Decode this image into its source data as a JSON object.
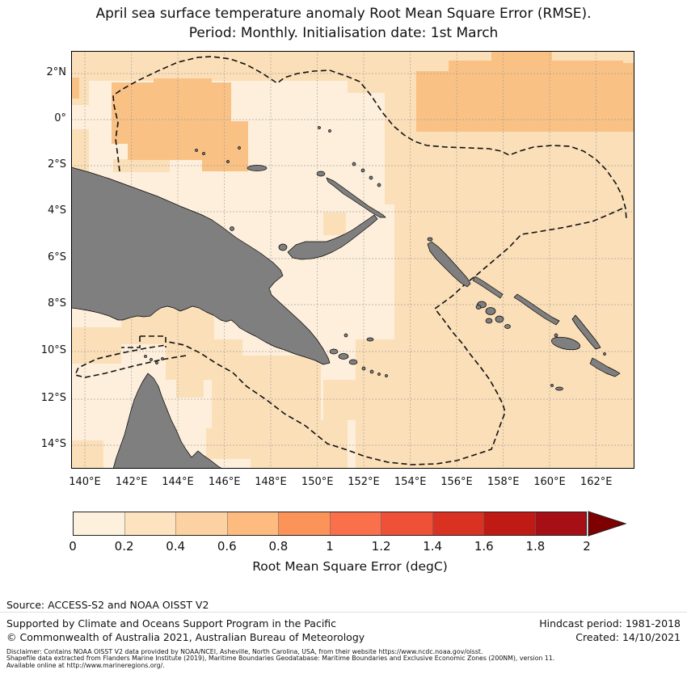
{
  "title": {
    "line1": "April sea surface temperature anomaly Root Mean Square Error (RMSE).",
    "line2": "Period: Monthly. Initialisation date: 1st March"
  },
  "map": {
    "lat_ticks": [
      "2°N",
      "0°",
      "2°S",
      "4°S",
      "6°S",
      "8°S",
      "10°S",
      "12°S",
      "14°S"
    ],
    "lon_ticks": [
      "140°E",
      "142°E",
      "144°E",
      "146°E",
      "148°E",
      "150°E",
      "152°E",
      "154°E",
      "156°E",
      "158°E",
      "160°E",
      "162°E"
    ],
    "colors": {
      "sea_low": "#fdefdb",
      "sea_mid": "#fbdfb8",
      "sea_high": "#fac185",
      "land": "#7f7f7f",
      "coastline": "#000000",
      "grid": "#999999",
      "eez_line": "#111111"
    }
  },
  "colorbar": {
    "ticks": [
      "0",
      "0.2",
      "0.4",
      "0.6",
      "0.8",
      "1",
      "1.2",
      "1.4",
      "1.6",
      "1.8",
      "2"
    ],
    "segments": [
      "#fdf0dd",
      "#fde3c0",
      "#fdd2a2",
      "#fdbb80",
      "#fc9459",
      "#f9704b",
      "#ef5038",
      "#d93222",
      "#c01a14",
      "#a50f15"
    ],
    "arrow": "#7f0000",
    "label": "Root Mean Square Error (degC)"
  },
  "footer": {
    "source": "Source: ACCESS-S2 and NOAA OISST V2",
    "supported": "Supported by Climate and Oceans Support Program in the Pacific",
    "copyright": "© Commonwealth of Australia 2021, Australian Bureau of Meteorology",
    "hindcast": "Hindcast period: 1981-2018",
    "created": "Created: 14/10/2021",
    "disclaimer1": "Disclaimer: Contains NOAA OISST V2 data provided by NOAA/NCEI, Asheville, North Carolina, USA, from their website https://www.ncdc.noaa.gov/oisst.",
    "disclaimer2": "Shapefile data extracted from Flanders Marine Institute (2019), Maritime Boundaries Geodatabase: Maritime Boundaries and Exclusive Economic Zones (200NM), version 11.",
    "disclaimer3": "Available online at http://www.marineregions.org/."
  }
}
